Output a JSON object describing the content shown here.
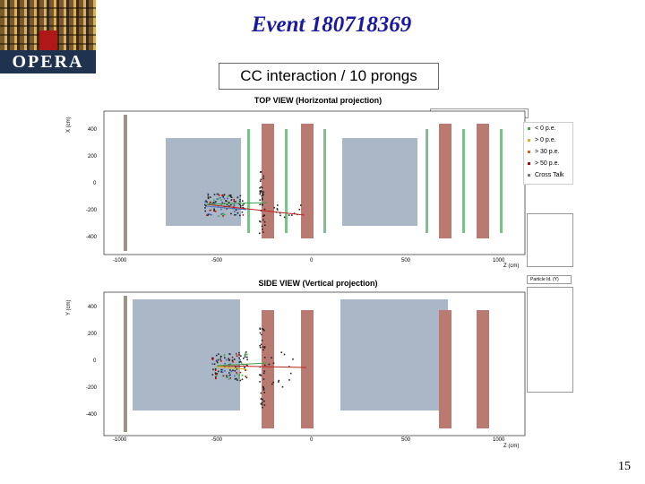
{
  "slide": {
    "title": "Event 180718369",
    "subtitle": "CC interaction / 10 prongs",
    "page_number": "15"
  },
  "logo": {
    "text": "OPERA"
  },
  "top_view": {
    "title": "TOP VIEW (Horizontal projection)",
    "axis_label": "X (cm)",
    "x_axis_label": "Z (cm)",
    "y_ticks": [
      "400",
      "200",
      "0",
      "-200",
      "-400"
    ],
    "x_ticks": [
      "-1000",
      "-500",
      "0",
      "500",
      "1000"
    ]
  },
  "side_view": {
    "title": "SIDE VIEW (Vertical projection)",
    "axis_label": "Y (cm)",
    "x_axis_label": "Z (cm)",
    "y_ticks": [
      "400",
      "200",
      "0",
      "-200",
      "-400"
    ],
    "x_ticks": [
      "-1000",
      "-500",
      "0",
      "500",
      "1000"
    ]
  },
  "legend": {
    "items": [
      {
        "label": "< 0 p.e.",
        "color": "#3fa34a"
      },
      {
        "label": "> 0 p.e.",
        "color": "#e8b400"
      },
      {
        "label": "> 30 p.e.",
        "color": "#e06000"
      },
      {
        "label": "> 50 p.e.",
        "color": "#c00000"
      },
      {
        "label": "Cross Talk",
        "color": "#777777"
      }
    ]
  },
  "side_panel": {
    "particle_id_label": "Particle Id. (Y)"
  },
  "colors": {
    "target_block": "#a9b7c6",
    "magnet": "#b97a72",
    "tracker": "#7fbf8f",
    "title_blue": "#1a1aa0"
  }
}
